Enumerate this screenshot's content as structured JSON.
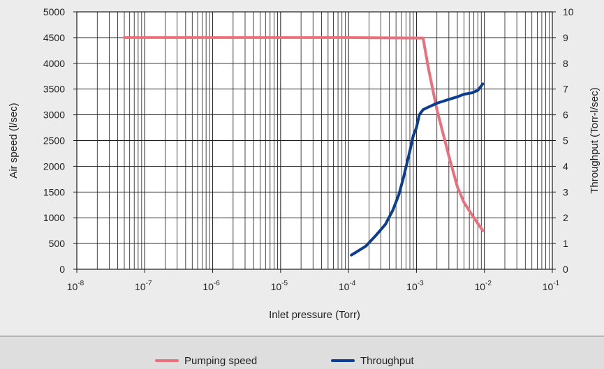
{
  "chart_data": {
    "type": "line",
    "title": "",
    "xlabel": "Inlet pressure (Torr)",
    "ylabel": "Air speed (l/sec)",
    "y2label": "Throughput (Torr-l/sec)",
    "x_scale": "log",
    "xlim": [
      1e-08,
      0.1
    ],
    "ylim": [
      0,
      5000
    ],
    "y2lim": [
      0,
      10
    ],
    "grid": true,
    "legend_position": "bottom",
    "x_ticks": [
      {
        "value": 1e-08,
        "base": "10",
        "exp": "-8"
      },
      {
        "value": 1e-07,
        "base": "10",
        "exp": "-7"
      },
      {
        "value": 1e-06,
        "base": "10",
        "exp": "-6"
      },
      {
        "value": 1e-05,
        "base": "10",
        "exp": "-5"
      },
      {
        "value": 0.0001,
        "base": "10",
        "exp": "-4"
      },
      {
        "value": 0.001,
        "base": "10",
        "exp": "-3"
      },
      {
        "value": 0.01,
        "base": "10",
        "exp": "-2"
      },
      {
        "value": 0.1,
        "base": "10",
        "exp": "-1"
      }
    ],
    "y_ticks": [
      "0",
      "500",
      "1000",
      "1500",
      "2000",
      "2500",
      "3000",
      "3500",
      "4000",
      "4500",
      "5000"
    ],
    "y2_ticks": [
      "0",
      "1",
      "2",
      "3",
      "4",
      "5",
      "6",
      "7",
      "8",
      "9",
      "10"
    ],
    "series": [
      {
        "name": "Pumping speed",
        "axis": "left",
        "color": "#e9707c",
        "x": [
          5e-08,
          1e-07,
          1e-06,
          1e-05,
          0.0001,
          0.00125,
          0.0015,
          0.002,
          0.003,
          0.004,
          0.005,
          0.007,
          0.0095
        ],
        "y": [
          4500,
          4500,
          4500,
          4500,
          4500,
          4490,
          3900,
          3100,
          2200,
          1600,
          1300,
          1000,
          750
        ]
      },
      {
        "name": "Throughput",
        "axis": "right",
        "color": "#0b3d91",
        "x": [
          0.00011,
          0.00018,
          0.00025,
          0.00035,
          0.00045,
          0.00055,
          0.00065,
          0.0008,
          0.0009,
          0.001,
          0.0011,
          0.00125,
          0.0015,
          0.002,
          0.003,
          0.004,
          0.005,
          0.0065,
          0.008,
          0.0095
        ],
        "y": [
          0.55,
          0.9,
          1.3,
          1.75,
          2.3,
          2.9,
          3.6,
          4.6,
          5.2,
          5.5,
          6.0,
          6.2,
          6.3,
          6.45,
          6.6,
          6.7,
          6.8,
          6.85,
          6.95,
          7.2
        ]
      }
    ]
  }
}
